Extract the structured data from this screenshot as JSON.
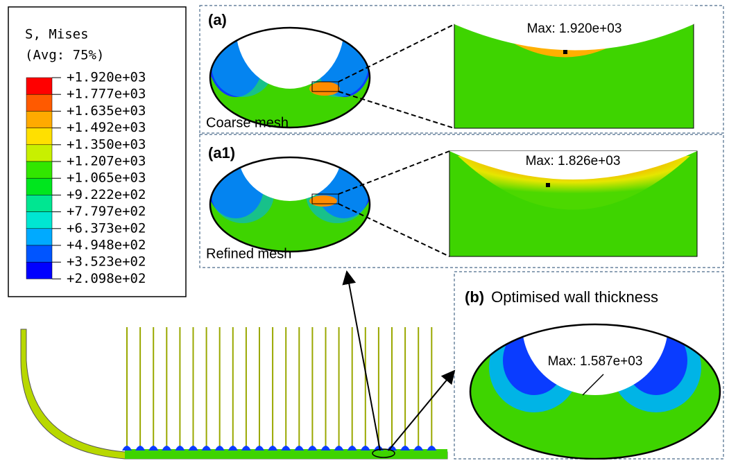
{
  "legend": {
    "title": "S, Mises",
    "subtitle": "(Avg: 75%)",
    "labels": [
      "+1.920e+03",
      "+1.777e+03",
      "+1.635e+03",
      "+1.492e+03",
      "+1.350e+03",
      "+1.207e+03",
      "+1.065e+03",
      "+9.222e+02",
      "+7.797e+02",
      "+6.373e+02",
      "+4.948e+02",
      "+3.523e+02",
      "+2.098e+02"
    ],
    "colors": [
      "#ff0000",
      "#ff5a00",
      "#ffaa00",
      "#ffe000",
      "#c8f000",
      "#32e600",
      "#00e61e",
      "#00e691",
      "#00e6d2",
      "#00aaff",
      "#0055ff",
      "#0000ff"
    ]
  },
  "panels": [
    {
      "label": "(a)",
      "caption": "Coarse mesh",
      "max_label": "Max: 1.920e+03"
    },
    {
      "label": "(a1)",
      "caption": "Refined mesh",
      "max_label": "Max: 1.826e+03"
    },
    {
      "label": "(b)",
      "title": "Optimised wall  thickness",
      "max_label": "Max: 1.587e+03"
    }
  ]
}
